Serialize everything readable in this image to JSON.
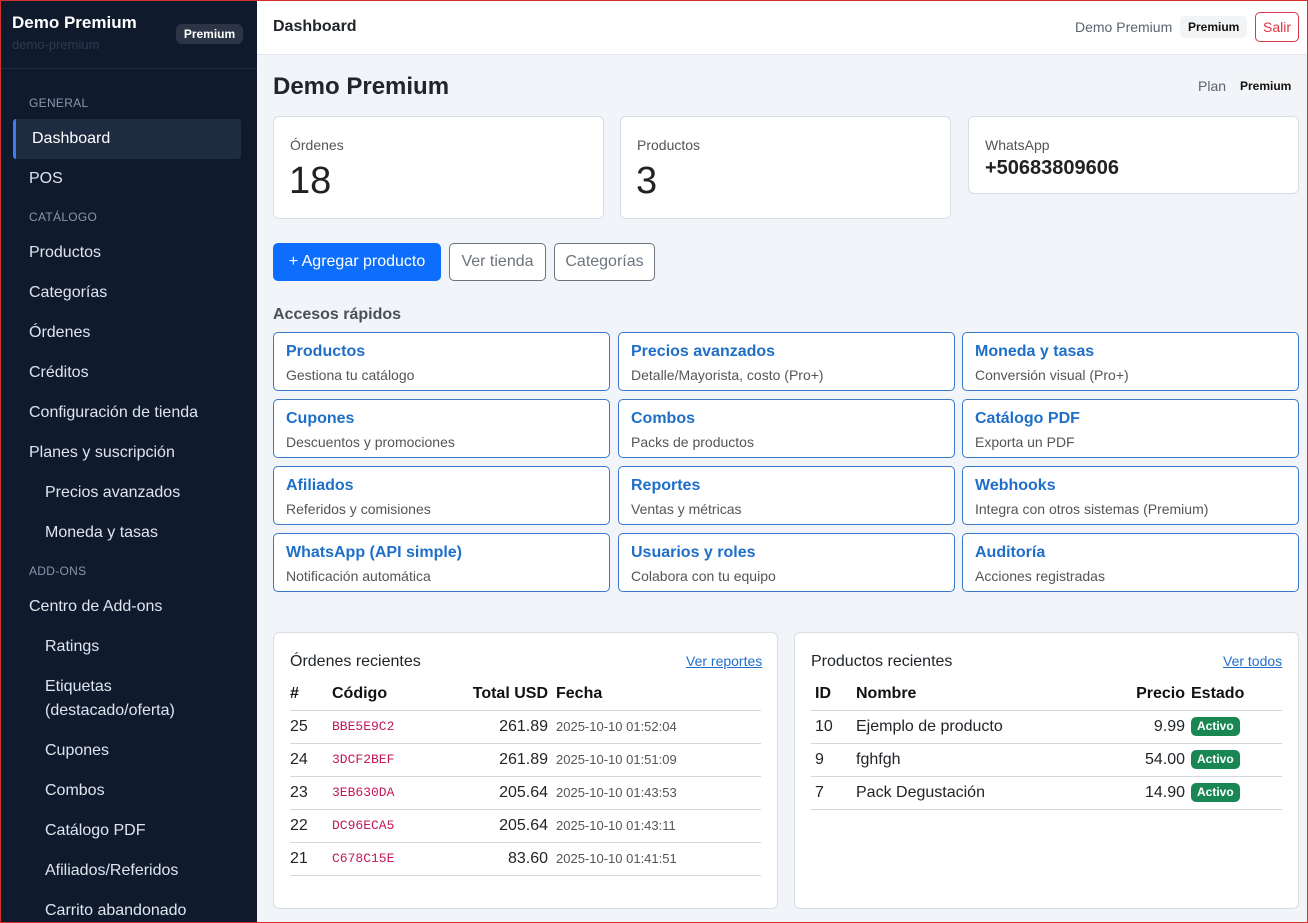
{
  "brand": {
    "title": "Demo Premium",
    "subtitle": "demo-premium",
    "badge": "Premium"
  },
  "sidebar": {
    "sections": [
      "GENERAL",
      "CATÁLOGO",
      "ADD-ONS"
    ],
    "items": [
      "Dashboard",
      "POS",
      "Productos",
      "Categorías",
      "Órdenes",
      "Créditos",
      "Configuración de tienda",
      "Planes y suscripción",
      "Precios avanzados",
      "Moneda y tasas",
      "Centro de Add-ons",
      "Ratings",
      "Etiquetas (destacado/oferta)",
      "Cupones",
      "Combos",
      "Catálogo PDF",
      "Afiliados/Referidos",
      "Carrito abandonado"
    ]
  },
  "topbar": {
    "title": "Dashboard",
    "user": "Demo Premium",
    "plan": "Premium",
    "logout": "Salir"
  },
  "main": {
    "title": "Demo Premium",
    "plan_label": "Plan",
    "plan_value": "Premium",
    "stats": [
      {
        "label": "Órdenes",
        "value": "18"
      },
      {
        "label": "Productos",
        "value": "3"
      },
      {
        "label": "WhatsApp",
        "value": "+50683809606"
      }
    ],
    "buttons": {
      "add": "+ Agregar producto",
      "store": "Ver tienda",
      "categories": "Categorías"
    },
    "quick_title": "Accesos rápidos",
    "quick": [
      {
        "title": "Productos",
        "desc": "Gestiona tu catálogo"
      },
      {
        "title": "Precios avanzados",
        "desc": "Detalle/Mayorista, costo (Pro+)"
      },
      {
        "title": "Moneda y tasas",
        "desc": "Conversión visual (Pro+)"
      },
      {
        "title": "Cupones",
        "desc": "Descuentos y promociones"
      },
      {
        "title": "Combos",
        "desc": "Packs de productos"
      },
      {
        "title": "Catálogo PDF",
        "desc": "Exporta un PDF"
      },
      {
        "title": "Afiliados",
        "desc": "Referidos y comisiones"
      },
      {
        "title": "Reportes",
        "desc": "Ventas y métricas"
      },
      {
        "title": "Webhooks",
        "desc": "Integra con otros sistemas (Premium)"
      },
      {
        "title": "WhatsApp (API simple)",
        "desc": "Notificación automática"
      },
      {
        "title": "Usuarios y roles",
        "desc": "Colabora con tu equipo"
      },
      {
        "title": "Auditoría",
        "desc": "Acciones registradas"
      }
    ]
  },
  "orders": {
    "title": "Órdenes recientes",
    "link": "Ver reportes",
    "headers": [
      "#",
      "Código",
      "Total USD",
      "Fecha"
    ],
    "rows": [
      [
        "25",
        "BBE5E9C2",
        "261.89",
        "2025-10-10 01:52:04"
      ],
      [
        "24",
        "3DCF2BEF",
        "261.89",
        "2025-10-10 01:51:09"
      ],
      [
        "23",
        "3EB630DA",
        "205.64",
        "2025-10-10 01:43:53"
      ],
      [
        "22",
        "DC96ECA5",
        "205.64",
        "2025-10-10 01:43:11"
      ],
      [
        "21",
        "C678C15E",
        "83.60",
        "2025-10-10 01:41:51"
      ]
    ]
  },
  "products": {
    "title": "Productos recientes",
    "link": "Ver todos",
    "headers": [
      "ID",
      "Nombre",
      "Precio",
      "Estado"
    ],
    "rows": [
      [
        "10",
        "Ejemplo de producto",
        "9.99",
        "Activo"
      ],
      [
        "9",
        "fghfgh",
        "54.00",
        "Activo"
      ],
      [
        "7",
        "Pack Degustación",
        "14.90",
        "Activo"
      ]
    ]
  },
  "colors": {
    "sidebar_bg": "#0f1a2c",
    "accent": "#0d6efd",
    "link": "#1f6fc9",
    "status_active": "#198754",
    "danger": "#dc3545"
  }
}
